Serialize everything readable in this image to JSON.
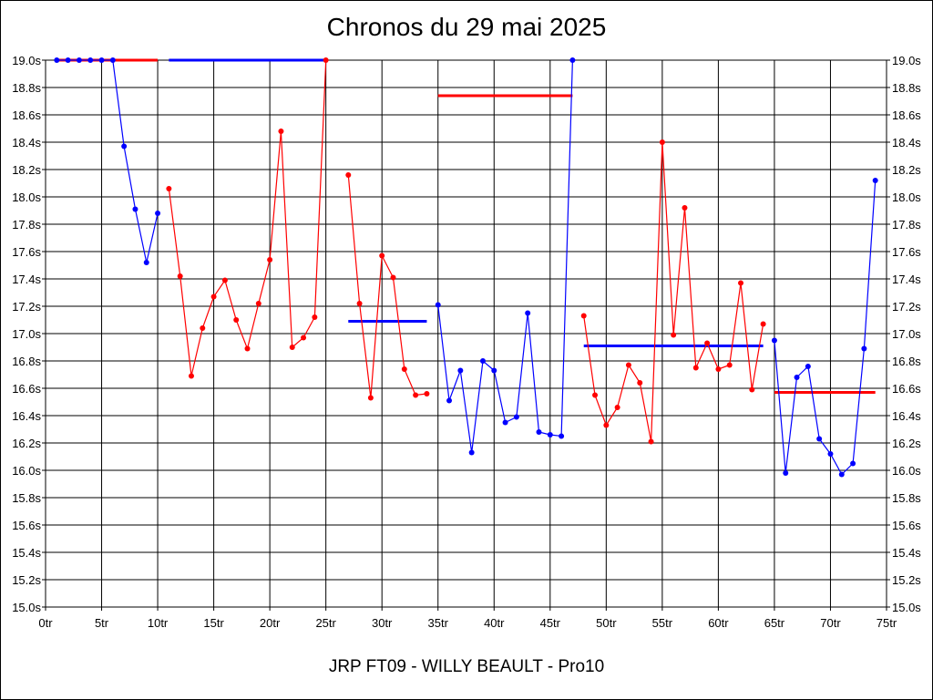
{
  "chart_data": {
    "type": "line",
    "title": "Chronos du 29 mai 2025",
    "subtitle": "JRP FT09 - WILLY BEAULT - Pro10",
    "xlim": [
      0,
      75
    ],
    "ylim": [
      15.0,
      19.0
    ],
    "x_ticks": [
      0,
      5,
      10,
      15,
      20,
      25,
      30,
      35,
      40,
      45,
      50,
      55,
      60,
      65,
      70,
      75
    ],
    "x_tick_labels": [
      "0tr",
      "5tr",
      "10tr",
      "15tr",
      "20tr",
      "25tr",
      "30tr",
      "35tr",
      "40tr",
      "45tr",
      "50tr",
      "55tr",
      "60tr",
      "65tr",
      "70tr",
      "75tr"
    ],
    "y_ticks": [
      15.0,
      15.2,
      15.4,
      15.6,
      15.8,
      16.0,
      16.2,
      16.4,
      16.6,
      16.8,
      17.0,
      17.2,
      17.4,
      17.6,
      17.8,
      18.0,
      18.2,
      18.4,
      18.6,
      18.8,
      19.0
    ],
    "y_tick_labels": [
      "15.0s",
      "15.2s",
      "15.4s",
      "15.6s",
      "15.8s",
      "16.0s",
      "16.2s",
      "16.4s",
      "16.6s",
      "16.8s",
      "17.0s",
      "17.2s",
      "17.4s",
      "17.6s",
      "17.8s",
      "18.0s",
      "18.2s",
      "18.4s",
      "18.6s",
      "18.8s",
      "19.0s"
    ],
    "grid": true,
    "series": [
      {
        "color": "#0000ff",
        "x": [
          1,
          2,
          3,
          4,
          5,
          6,
          7,
          8,
          9,
          10
        ],
        "values": [
          19.0,
          19.0,
          19.0,
          19.0,
          19.0,
          19.0,
          18.37,
          17.91,
          17.52,
          17.88
        ]
      },
      {
        "color": "#ff0000",
        "x": [
          11,
          12,
          13,
          14,
          15,
          16,
          17,
          18,
          19,
          20,
          21,
          22,
          23,
          24,
          25
        ],
        "values": [
          18.06,
          17.42,
          16.69,
          17.04,
          17.27,
          17.39,
          17.1,
          16.89,
          17.22,
          17.54,
          18.48,
          16.9,
          16.97,
          17.12,
          19.0
        ]
      },
      {
        "color": "#ff0000",
        "x": [
          27,
          28,
          29,
          30,
          31,
          32,
          33,
          34
        ],
        "values": [
          18.16,
          17.22,
          16.53,
          17.57,
          17.41,
          16.74,
          16.55,
          16.56
        ]
      },
      {
        "color": "#0000ff",
        "x": [
          35,
          36,
          37,
          38,
          39,
          40,
          41,
          42,
          43,
          44,
          45,
          46,
          47
        ],
        "values": [
          17.21,
          16.51,
          16.73,
          16.13,
          16.8,
          16.73,
          16.35,
          16.39,
          17.15,
          16.28,
          16.26,
          16.25,
          19.0
        ]
      },
      {
        "color": "#ff0000",
        "x": [
          48,
          49,
          50,
          51,
          52,
          53,
          54,
          55,
          56,
          57,
          58,
          59,
          60,
          61,
          62,
          63,
          64
        ],
        "values": [
          17.13,
          16.55,
          16.33,
          16.46,
          16.77,
          16.64,
          16.21,
          18.4,
          16.99,
          17.92,
          16.75,
          16.93,
          16.74,
          16.77,
          17.37,
          16.59,
          17.07
        ]
      },
      {
        "color": "#0000ff",
        "x": [
          65,
          66,
          67,
          68,
          69,
          70,
          71,
          72,
          73,
          74
        ],
        "values": [
          16.95,
          15.98,
          16.68,
          16.76,
          16.23,
          16.12,
          15.97,
          16.05,
          16.89,
          18.12
        ]
      }
    ],
    "reference_lines": [
      {
        "color": "#ff0000",
        "x": [
          1,
          10
        ],
        "value": 19.0
      },
      {
        "color": "#0000ff",
        "x": [
          11,
          25
        ],
        "value": 19.0
      },
      {
        "color": "#0000ff",
        "x": [
          27,
          34
        ],
        "value": 17.09
      },
      {
        "color": "#ff0000",
        "x": [
          35,
          47
        ],
        "value": 18.74
      },
      {
        "color": "#0000ff",
        "x": [
          48,
          64
        ],
        "value": 16.91
      },
      {
        "color": "#ff0000",
        "x": [
          65,
          74
        ],
        "value": 16.57
      }
    ]
  }
}
